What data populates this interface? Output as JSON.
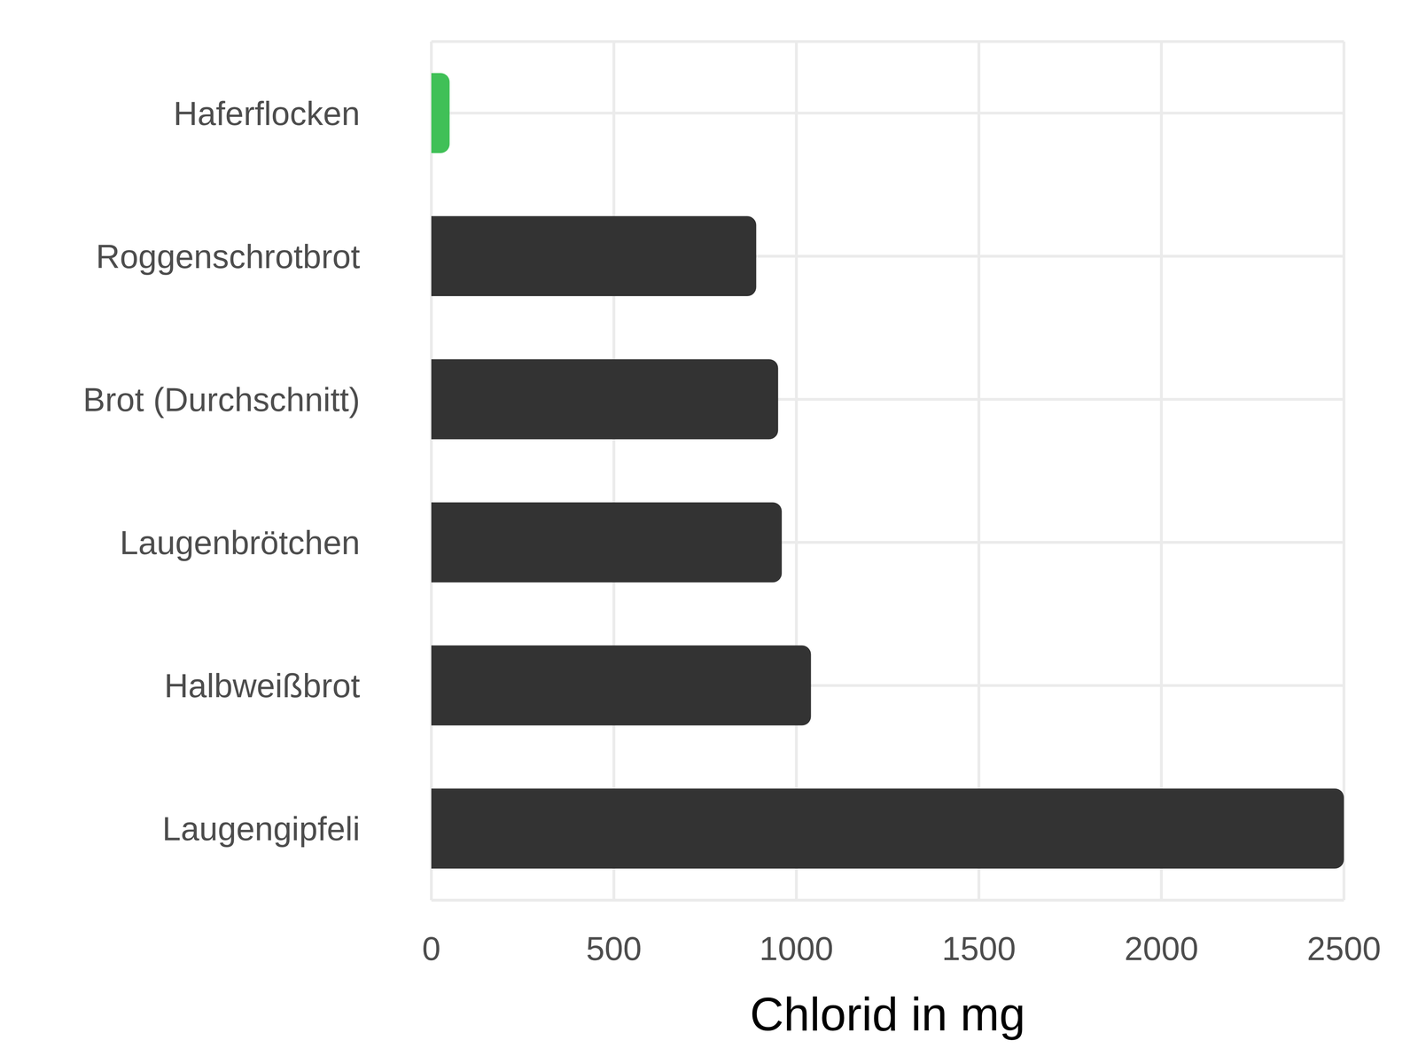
{
  "chart_data": {
    "type": "bar",
    "orientation": "horizontal",
    "xlabel": "Chlorid in mg",
    "categories": [
      "Haferflocken",
      "Roggenschrotbrot",
      "Brot (Durchschnitt)",
      "Laugenbrötchen",
      "Halbweißbrot",
      "Laugengipfeli"
    ],
    "values": [
      50,
      890,
      950,
      960,
      1040,
      2500
    ],
    "colors": [
      "#40c057",
      "#333333",
      "#333333",
      "#333333",
      "#333333",
      "#333333"
    ],
    "xlim": [
      0,
      2500
    ],
    "xticks": [
      0,
      500,
      1000,
      1500,
      2000,
      2500
    ],
    "grid": true
  }
}
